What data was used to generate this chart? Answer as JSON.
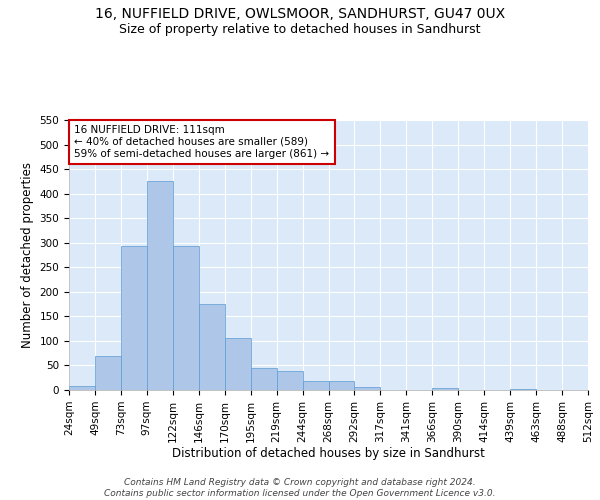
{
  "title1": "16, NUFFIELD DRIVE, OWLSMOOR, SANDHURST, GU47 0UX",
  "title2": "Size of property relative to detached houses in Sandhurst",
  "xlabel": "Distribution of detached houses by size in Sandhurst",
  "ylabel": "Number of detached properties",
  "bar_values": [
    8,
    70,
    293,
    425,
    293,
    175,
    106,
    45,
    38,
    18,
    18,
    6,
    0,
    0,
    4,
    0,
    0,
    2,
    0,
    0
  ],
  "x_tick_labels": [
    "24sqm",
    "49sqm",
    "73sqm",
    "97sqm",
    "122sqm",
    "146sqm",
    "170sqm",
    "195sqm",
    "219sqm",
    "244sqm",
    "268sqm",
    "292sqm",
    "317sqm",
    "341sqm",
    "366sqm",
    "390sqm",
    "414sqm",
    "439sqm",
    "463sqm",
    "488sqm",
    "512sqm"
  ],
  "bar_color": "#aec6e8",
  "bar_edge_color": "#5b9bd5",
  "background_color": "#dce9f8",
  "grid_color": "#ffffff",
  "annotation_text": "16 NUFFIELD DRIVE: 111sqm\n← 40% of detached houses are smaller (589)\n59% of semi-detached houses are larger (861) →",
  "annotation_box_color": "#ffffff",
  "annotation_box_edge": "#cc0000",
  "ylim": [
    0,
    550
  ],
  "yticks": [
    0,
    50,
    100,
    150,
    200,
    250,
    300,
    350,
    400,
    450,
    500,
    550
  ],
  "footer_line1": "Contains HM Land Registry data © Crown copyright and database right 2024.",
  "footer_line2": "Contains public sector information licensed under the Open Government Licence v3.0.",
  "title1_fontsize": 10,
  "title2_fontsize": 9,
  "xlabel_fontsize": 8.5,
  "ylabel_fontsize": 8.5,
  "tick_fontsize": 7.5,
  "annotation_fontsize": 7.5,
  "footer_fontsize": 6.5
}
